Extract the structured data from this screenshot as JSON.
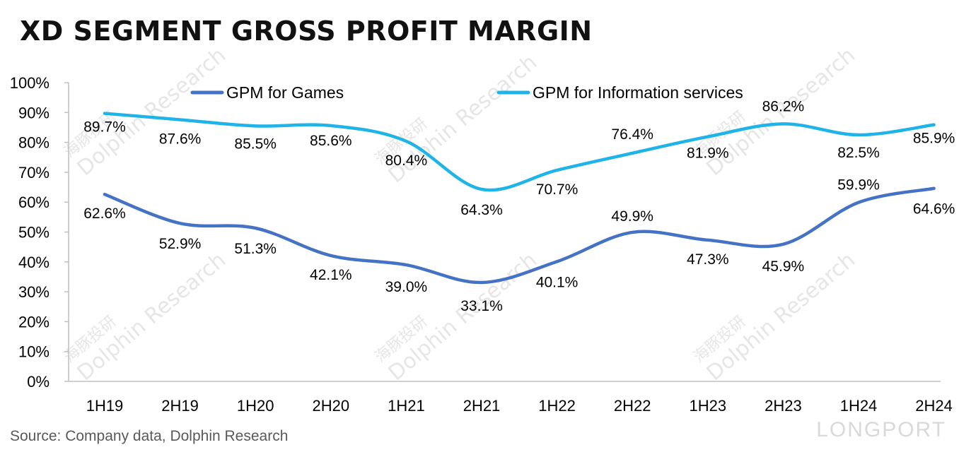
{
  "title": "XD SEGMENT GROSS PROFIT MARGIN",
  "source": "Source: Company data, Dolphin Research",
  "brand": "LONGPORT",
  "watermark": "Dolphin Research",
  "watermark_cn": "海豚投研",
  "colors": {
    "games": "#4472c4",
    "info": "#1fb4e8"
  },
  "chart_data": {
    "type": "line",
    "categories": [
      "1H19",
      "2H19",
      "1H20",
      "2H20",
      "1H21",
      "2H21",
      "1H22",
      "2H22",
      "1H23",
      "2H23",
      "1H24",
      "2H24"
    ],
    "ylim": [
      0,
      100
    ],
    "yticks": [
      "0%",
      "10%",
      "20%",
      "30%",
      "40%",
      "50%",
      "60%",
      "70%",
      "80%",
      "90%",
      "100%"
    ],
    "legend_position": "top",
    "grid": false,
    "series": [
      {
        "name": "GPM for Games",
        "values": [
          62.6,
          52.9,
          51.3,
          42.1,
          39.0,
          33.1,
          40.1,
          49.9,
          47.3,
          45.9,
          59.9,
          64.6
        ],
        "labels": [
          "62.6%",
          "52.9%",
          "51.3%",
          "42.1%",
          "39.0%",
          "33.1%",
          "40.1%",
          "49.9%",
          "47.3%",
          "45.9%",
          "59.9%",
          "64.6%"
        ]
      },
      {
        "name": "GPM for Information services",
        "values": [
          89.7,
          87.6,
          85.5,
          85.6,
          80.4,
          64.3,
          70.7,
          76.4,
          81.9,
          86.2,
          82.5,
          85.9
        ],
        "labels": [
          "89.7%",
          "87.6%",
          "85.5%",
          "85.6%",
          "80.4%",
          "64.3%",
          "70.7%",
          "76.4%",
          "81.9%",
          "86.2%",
          "82.5%",
          "85.9%"
        ]
      }
    ]
  }
}
